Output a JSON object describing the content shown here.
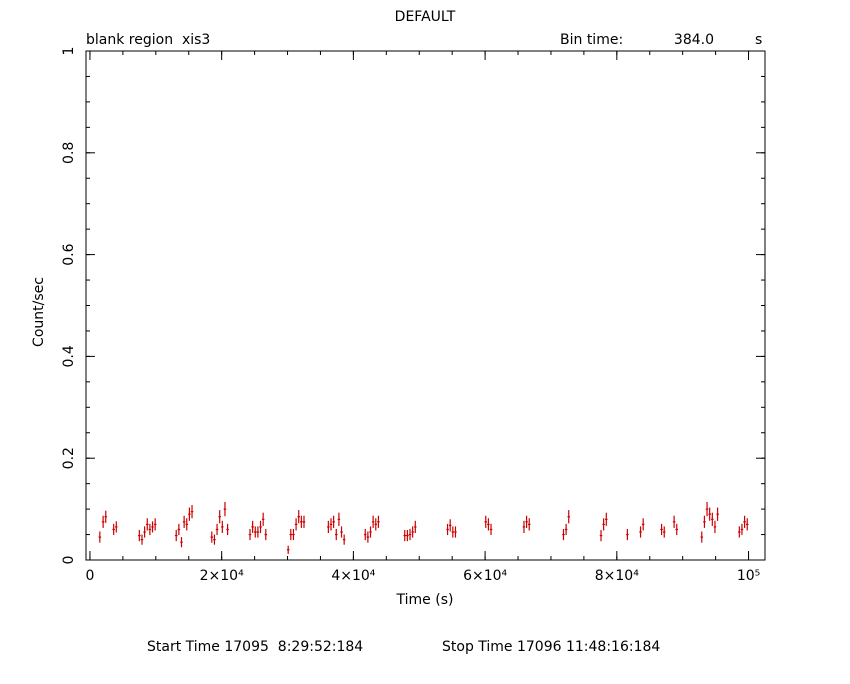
{
  "title": "DEFAULT",
  "subtitle_left": "blank region  xis3",
  "bin_time_label": "Bin time:",
  "bin_time_value": "384.0",
  "bin_time_unit": "s",
  "footer": {
    "start": "Start Time 17095  8:29:52:184",
    "stop": "Stop Time 17096 11:48:16:184"
  },
  "colors": {
    "data": "#cc0000",
    "axes": "#000000"
  },
  "chart_data": {
    "type": "scatter",
    "title": "DEFAULT",
    "xlabel": "Time (s)",
    "ylabel": "Count/sec",
    "xlim": [
      -600,
      102500
    ],
    "ylim": [
      0,
      1
    ],
    "grid": false,
    "x_ticks": [
      {
        "value": 0,
        "label": "0"
      },
      {
        "value": 20000,
        "label": "2×10⁴"
      },
      {
        "value": 40000,
        "label": "4×10⁴"
      },
      {
        "value": 60000,
        "label": "6×10⁴"
      },
      {
        "value": 80000,
        "label": "8×10⁴"
      },
      {
        "value": 100000,
        "label": "10⁵"
      }
    ],
    "y_ticks": [
      {
        "value": 0,
        "label": "0"
      },
      {
        "value": 0.2,
        "label": "0.2"
      },
      {
        "value": 0.4,
        "label": "0.4"
      },
      {
        "value": 0.6,
        "label": "0.6"
      },
      {
        "value": 0.8,
        "label": "0.8"
      },
      {
        "value": 1,
        "label": "1"
      }
    ],
    "x_minor_step": 5000,
    "y_minor_step": 0.05,
    "x_err": 192,
    "series": [
      {
        "x": [
          1500,
          2000,
          2400,
          3600,
          4000,
          7500,
          7900,
          8300,
          8700,
          9100,
          9500,
          9900,
          13100,
          13500,
          13900,
          14300,
          14700,
          15100,
          15500,
          18500,
          18900,
          19300,
          19700,
          20100,
          20500,
          20900,
          24300,
          24700,
          25100,
          25500,
          25900,
          26300,
          26700,
          30100,
          30500,
          30900,
          31300,
          31700,
          32100,
          32500,
          36200,
          36600,
          37000,
          37400,
          37800,
          38200,
          38600,
          41800,
          42200,
          42600,
          43000,
          43400,
          43800,
          47800,
          48200,
          48600,
          49000,
          49400,
          54300,
          54700,
          55100,
          55500,
          60100,
          60500,
          60900,
          65900,
          66300,
          66700,
          71900,
          72300,
          72700,
          77600,
          78000,
          78400,
          81600,
          83600,
          84000,
          86800,
          87200,
          88700,
          89100,
          92900,
          93300,
          93700,
          94100,
          94500,
          94900,
          95300,
          98600,
          99000,
          99400,
          99800
        ],
        "y": [
          0.045,
          0.075,
          0.085,
          0.06,
          0.065,
          0.048,
          0.04,
          0.055,
          0.07,
          0.06,
          0.065,
          0.07,
          0.048,
          0.06,
          0.035,
          0.075,
          0.07,
          0.09,
          0.095,
          0.045,
          0.04,
          0.06,
          0.085,
          0.065,
          0.1,
          0.06,
          0.05,
          0.065,
          0.055,
          0.055,
          0.065,
          0.08,
          0.05,
          0.02,
          0.05,
          0.05,
          0.07,
          0.085,
          0.075,
          0.075,
          0.065,
          0.07,
          0.075,
          0.05,
          0.08,
          0.055,
          0.04,
          0.05,
          0.045,
          0.055,
          0.075,
          0.07,
          0.075,
          0.048,
          0.048,
          0.05,
          0.055,
          0.065,
          0.06,
          0.068,
          0.055,
          0.055,
          0.075,
          0.07,
          0.06,
          0.065,
          0.075,
          0.07,
          0.05,
          0.06,
          0.085,
          0.048,
          0.07,
          0.08,
          0.05,
          0.055,
          0.07,
          0.06,
          0.055,
          0.075,
          0.06,
          0.045,
          0.075,
          0.1,
          0.09,
          0.08,
          0.065,
          0.09,
          0.055,
          0.06,
          0.075,
          0.07
        ],
        "yerr": [
          0.011,
          0.012,
          0.012,
          0.011,
          0.011,
          0.011,
          0.01,
          0.011,
          0.012,
          0.011,
          0.011,
          0.012,
          0.011,
          0.011,
          0.01,
          0.012,
          0.012,
          0.013,
          0.013,
          0.011,
          0.01,
          0.011,
          0.013,
          0.012,
          0.014,
          0.011,
          0.011,
          0.012,
          0.011,
          0.011,
          0.012,
          0.013,
          0.011,
          0.008,
          0.011,
          0.011,
          0.012,
          0.013,
          0.012,
          0.012,
          0.012,
          0.012,
          0.012,
          0.011,
          0.013,
          0.011,
          0.01,
          0.011,
          0.011,
          0.011,
          0.012,
          0.012,
          0.012,
          0.011,
          0.011,
          0.011,
          0.011,
          0.012,
          0.011,
          0.012,
          0.011,
          0.011,
          0.012,
          0.012,
          0.011,
          0.012,
          0.012,
          0.012,
          0.011,
          0.011,
          0.013,
          0.011,
          0.012,
          0.013,
          0.011,
          0.011,
          0.012,
          0.011,
          0.011,
          0.012,
          0.011,
          0.011,
          0.012,
          0.014,
          0.013,
          0.013,
          0.012,
          0.013,
          0.011,
          0.011,
          0.012,
          0.012
        ]
      }
    ]
  }
}
